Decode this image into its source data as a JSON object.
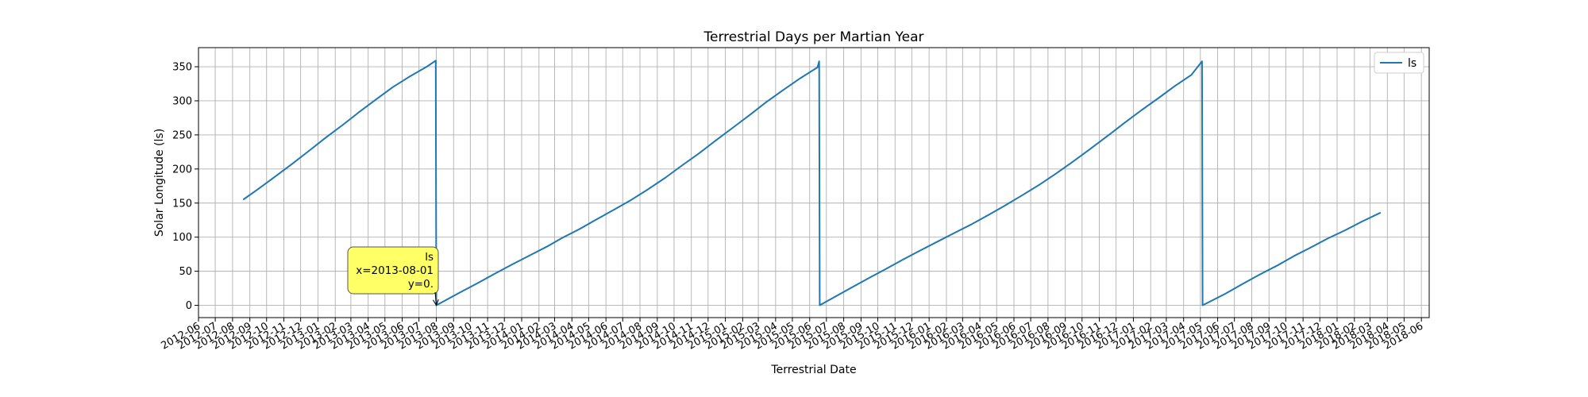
{
  "chart_data": {
    "type": "line",
    "title": "Terrestrial Days per Martian Year",
    "xlabel": "Terrestrial Date",
    "ylabel": "Solar Longitude (ls)",
    "xlim": [
      "2012-06-01",
      "2018-06-15"
    ],
    "ylim": [
      -18,
      378
    ],
    "x_tick_labels": [
      "2012-06",
      "2012-07",
      "2012-08",
      "2012-09",
      "2012-10",
      "2012-11",
      "2012-12",
      "2013-01",
      "2013-02",
      "2013-03",
      "2013-04",
      "2013-05",
      "2013-06",
      "2013-07",
      "2013-08",
      "2013-09",
      "2013-10",
      "2013-11",
      "2013-12",
      "2014-01",
      "2014-02",
      "2014-03",
      "2014-04",
      "2014-05",
      "2014-06",
      "2014-07",
      "2014-08",
      "2014-09",
      "2014-10",
      "2014-11",
      "2014-12",
      "2015-01",
      "2015-02",
      "2015-03",
      "2015-04",
      "2015-05",
      "2015-06",
      "2015-07",
      "2015-08",
      "2015-09",
      "2015-10",
      "2015-11",
      "2015-12",
      "2016-01",
      "2016-02",
      "2016-03",
      "2016-04",
      "2016-05",
      "2016-06",
      "2016-07",
      "2016-08",
      "2016-09",
      "2016-10",
      "2016-11",
      "2016-12",
      "2017-01",
      "2017-02",
      "2017-03",
      "2017-04",
      "2017-05",
      "2017-06",
      "2017-07",
      "2017-08",
      "2017-09",
      "2017-10",
      "2017-11",
      "2017-12",
      "2018-01",
      "2018-02",
      "2018-03",
      "2018-04",
      "2018-05",
      "2018-06"
    ],
    "y_ticks": [
      0,
      50,
      100,
      150,
      200,
      250,
      300,
      350
    ],
    "grid": true,
    "legend": {
      "position": "top-right"
    },
    "color": "#1f77b4",
    "series": [
      {
        "name": "ls",
        "points": [
          [
            "2012-08-20",
            155
          ],
          [
            "2012-09-15",
            170
          ],
          [
            "2012-10-15",
            188
          ],
          [
            "2012-11-15",
            207
          ],
          [
            "2012-12-15",
            226
          ],
          [
            "2013-01-15",
            246
          ],
          [
            "2013-02-15",
            265
          ],
          [
            "2013-03-15",
            283
          ],
          [
            "2013-04-15",
            302
          ],
          [
            "2013-05-15",
            320
          ],
          [
            "2013-06-15",
            336
          ],
          [
            "2013-07-15",
            350
          ],
          [
            "2013-07-31",
            359
          ],
          [
            "2013-08-01",
            0
          ],
          [
            "2013-09-15",
            20
          ],
          [
            "2013-10-15",
            33
          ],
          [
            "2013-11-15",
            47
          ],
          [
            "2013-12-15",
            60
          ],
          [
            "2014-01-15",
            73
          ],
          [
            "2014-02-15",
            86
          ],
          [
            "2014-03-15",
            99
          ],
          [
            "2014-04-15",
            112
          ],
          [
            "2014-05-15",
            126
          ],
          [
            "2014-06-15",
            140
          ],
          [
            "2014-07-15",
            154
          ],
          [
            "2014-08-15",
            170
          ],
          [
            "2014-09-15",
            187
          ],
          [
            "2014-10-15",
            205
          ],
          [
            "2014-11-15",
            223
          ],
          [
            "2014-12-15",
            242
          ],
          [
            "2015-01-15",
            261
          ],
          [
            "2015-02-15",
            280
          ],
          [
            "2015-03-15",
            298
          ],
          [
            "2015-04-15",
            316
          ],
          [
            "2015-05-15",
            333
          ],
          [
            "2015-06-15",
            349
          ],
          [
            "2015-06-18",
            358
          ],
          [
            "2015-06-19",
            0
          ],
          [
            "2015-07-15",
            12
          ],
          [
            "2015-08-15",
            26
          ],
          [
            "2015-09-15",
            40
          ],
          [
            "2015-10-15",
            53
          ],
          [
            "2015-11-15",
            67
          ],
          [
            "2015-12-15",
            80
          ],
          [
            "2016-01-15",
            93
          ],
          [
            "2016-02-15",
            106
          ],
          [
            "2016-03-15",
            118
          ],
          [
            "2016-04-15",
            132
          ],
          [
            "2016-05-15",
            146
          ],
          [
            "2016-06-15",
            161
          ],
          [
            "2016-07-15",
            176
          ],
          [
            "2016-08-15",
            193
          ],
          [
            "2016-09-15",
            211
          ],
          [
            "2016-10-15",
            229
          ],
          [
            "2016-11-15",
            248
          ],
          [
            "2016-12-15",
            267
          ],
          [
            "2017-01-15",
            286
          ],
          [
            "2017-02-15",
            304
          ],
          [
            "2017-03-15",
            321
          ],
          [
            "2017-04-15",
            338
          ],
          [
            "2017-05-04",
            358
          ],
          [
            "2017-05-05",
            0
          ],
          [
            "2017-06-15",
            17
          ],
          [
            "2017-07-15",
            31
          ],
          [
            "2017-08-15",
            45
          ],
          [
            "2017-09-15",
            58
          ],
          [
            "2017-10-15",
            72
          ],
          [
            "2017-11-15",
            85
          ],
          [
            "2017-12-15",
            98
          ],
          [
            "2018-01-15",
            110
          ],
          [
            "2018-02-15",
            123
          ],
          [
            "2018-03-20",
            136
          ]
        ]
      }
    ],
    "annotation": {
      "series": "ls",
      "x_text": "x=2013-08-01",
      "y_text": "y=0.",
      "target_x": "2013-08-01",
      "target_y": 0,
      "box_color": "#ffff66"
    }
  }
}
